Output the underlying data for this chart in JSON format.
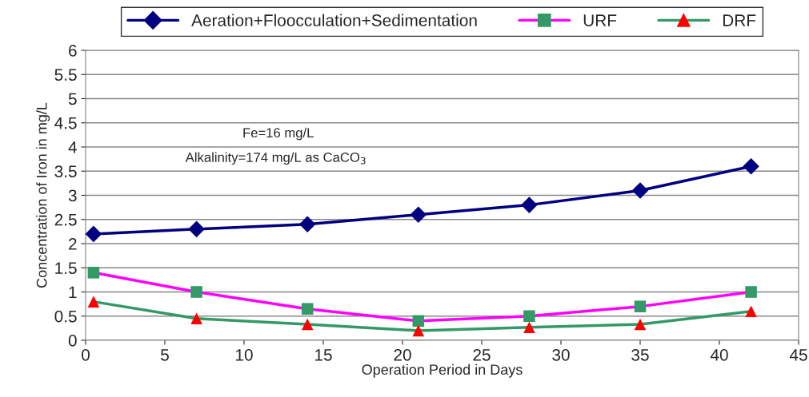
{
  "chart_data": {
    "type": "line",
    "xlabel": "Operation Period in Days",
    "ylabel": "Concentration of Iron in mg/L",
    "annotations": [
      "Fe=16 mg/L",
      "Alkalinity=174 mg/L as CaCO$_{3}$"
    ],
    "x": [
      0.5,
      7,
      14,
      21,
      28,
      35,
      42
    ],
    "series": [
      {
        "name": "Aeration+Floocculation+Sedimentation",
        "color": "#000080",
        "marker": "diamond",
        "values": [
          2.2,
          2.3,
          2.4,
          2.6,
          2.8,
          3.1,
          3.6
        ]
      },
      {
        "name": "URF",
        "color": "#ff00ff",
        "colors": [
          "#339966",
          "#339966",
          "#339966",
          "#339966",
          "#339966",
          "#339966",
          "#339966"
        ],
        "marker": "square",
        "values": [
          1.4,
          1.0,
          0.65,
          0.4,
          0.5,
          0.7,
          1.0
        ]
      },
      {
        "name": "DRF",
        "color": "#339966",
        "colors": [
          "#ff0000",
          "#ff0000",
          "#ff0000",
          "#ff0000",
          "#ff0000",
          "#ff0000",
          "#ff0000"
        ],
        "marker": "triangle",
        "values": [
          0.8,
          0.45,
          0.33,
          0.2,
          0.27,
          0.33,
          0.6
        ]
      }
    ],
    "xlim": [
      0,
      45
    ],
    "xticks": [
      0,
      5,
      10,
      15,
      20,
      25,
      30,
      35,
      40,
      45
    ],
    "ylim": [
      0,
      6
    ],
    "yticks": [
      0,
      0.5,
      1,
      1.5,
      2,
      2.5,
      3,
      3.5,
      4,
      4.5,
      5,
      5.5,
      6
    ],
    "grid": "y",
    "legend": "top",
    "line_style": "solid"
  }
}
